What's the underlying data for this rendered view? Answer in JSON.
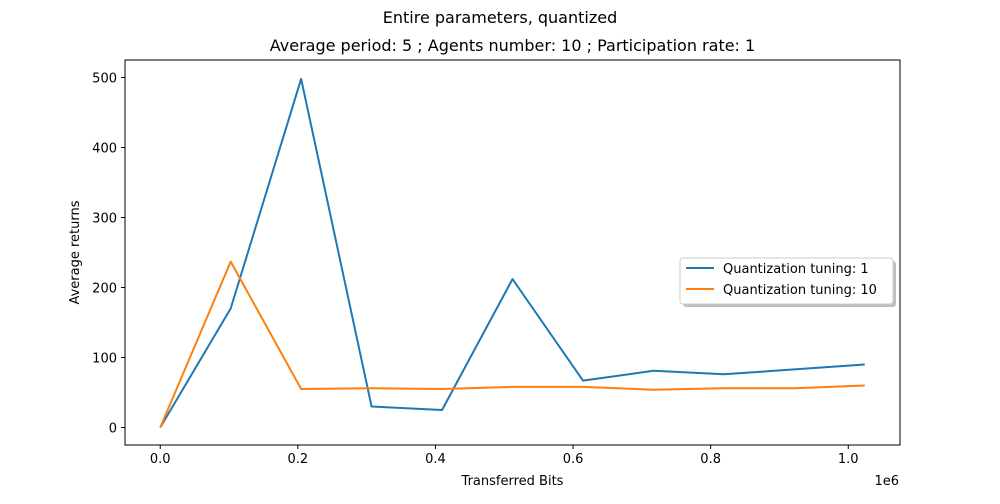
{
  "figure": {
    "suptitle": "Entire parameters, quantized"
  },
  "chart_data": {
    "type": "line",
    "title": "Average period: 5 ; Agents number: 10 ; Participation rate: 1",
    "xlabel": "Transferred Bits",
    "ylabel": "Average returns",
    "x_offset_label": "1e6",
    "x": [
      0,
      102400,
      204800,
      307200,
      409600,
      512000,
      614400,
      716800,
      819200,
      921600,
      1024000
    ],
    "xlim": [
      -0.0512,
      1.0752
    ],
    "ylim": [
      -25,
      525
    ],
    "xticks": [
      0.0,
      0.2,
      0.4,
      0.6,
      0.8,
      1.0
    ],
    "xtick_labels": [
      "0.0",
      "0.2",
      "0.4",
      "0.6",
      "0.8",
      "1.0"
    ],
    "yticks": [
      0,
      100,
      200,
      300,
      400,
      500
    ],
    "ytick_labels": [
      "0",
      "100",
      "200",
      "300",
      "400",
      "500"
    ],
    "grid": false,
    "legend_position": "center-right",
    "series": [
      {
        "name": "Quantization tuning: 1",
        "color": "#1f77b4",
        "values": [
          0,
          170,
          498,
          30,
          25,
          212,
          67,
          81,
          76,
          83,
          90
        ]
      },
      {
        "name": "Quantization tuning: 10",
        "color": "#ff7f0e",
        "values": [
          0,
          237,
          55,
          56,
          55,
          58,
          58,
          54,
          56,
          56,
          60
        ]
      }
    ]
  }
}
